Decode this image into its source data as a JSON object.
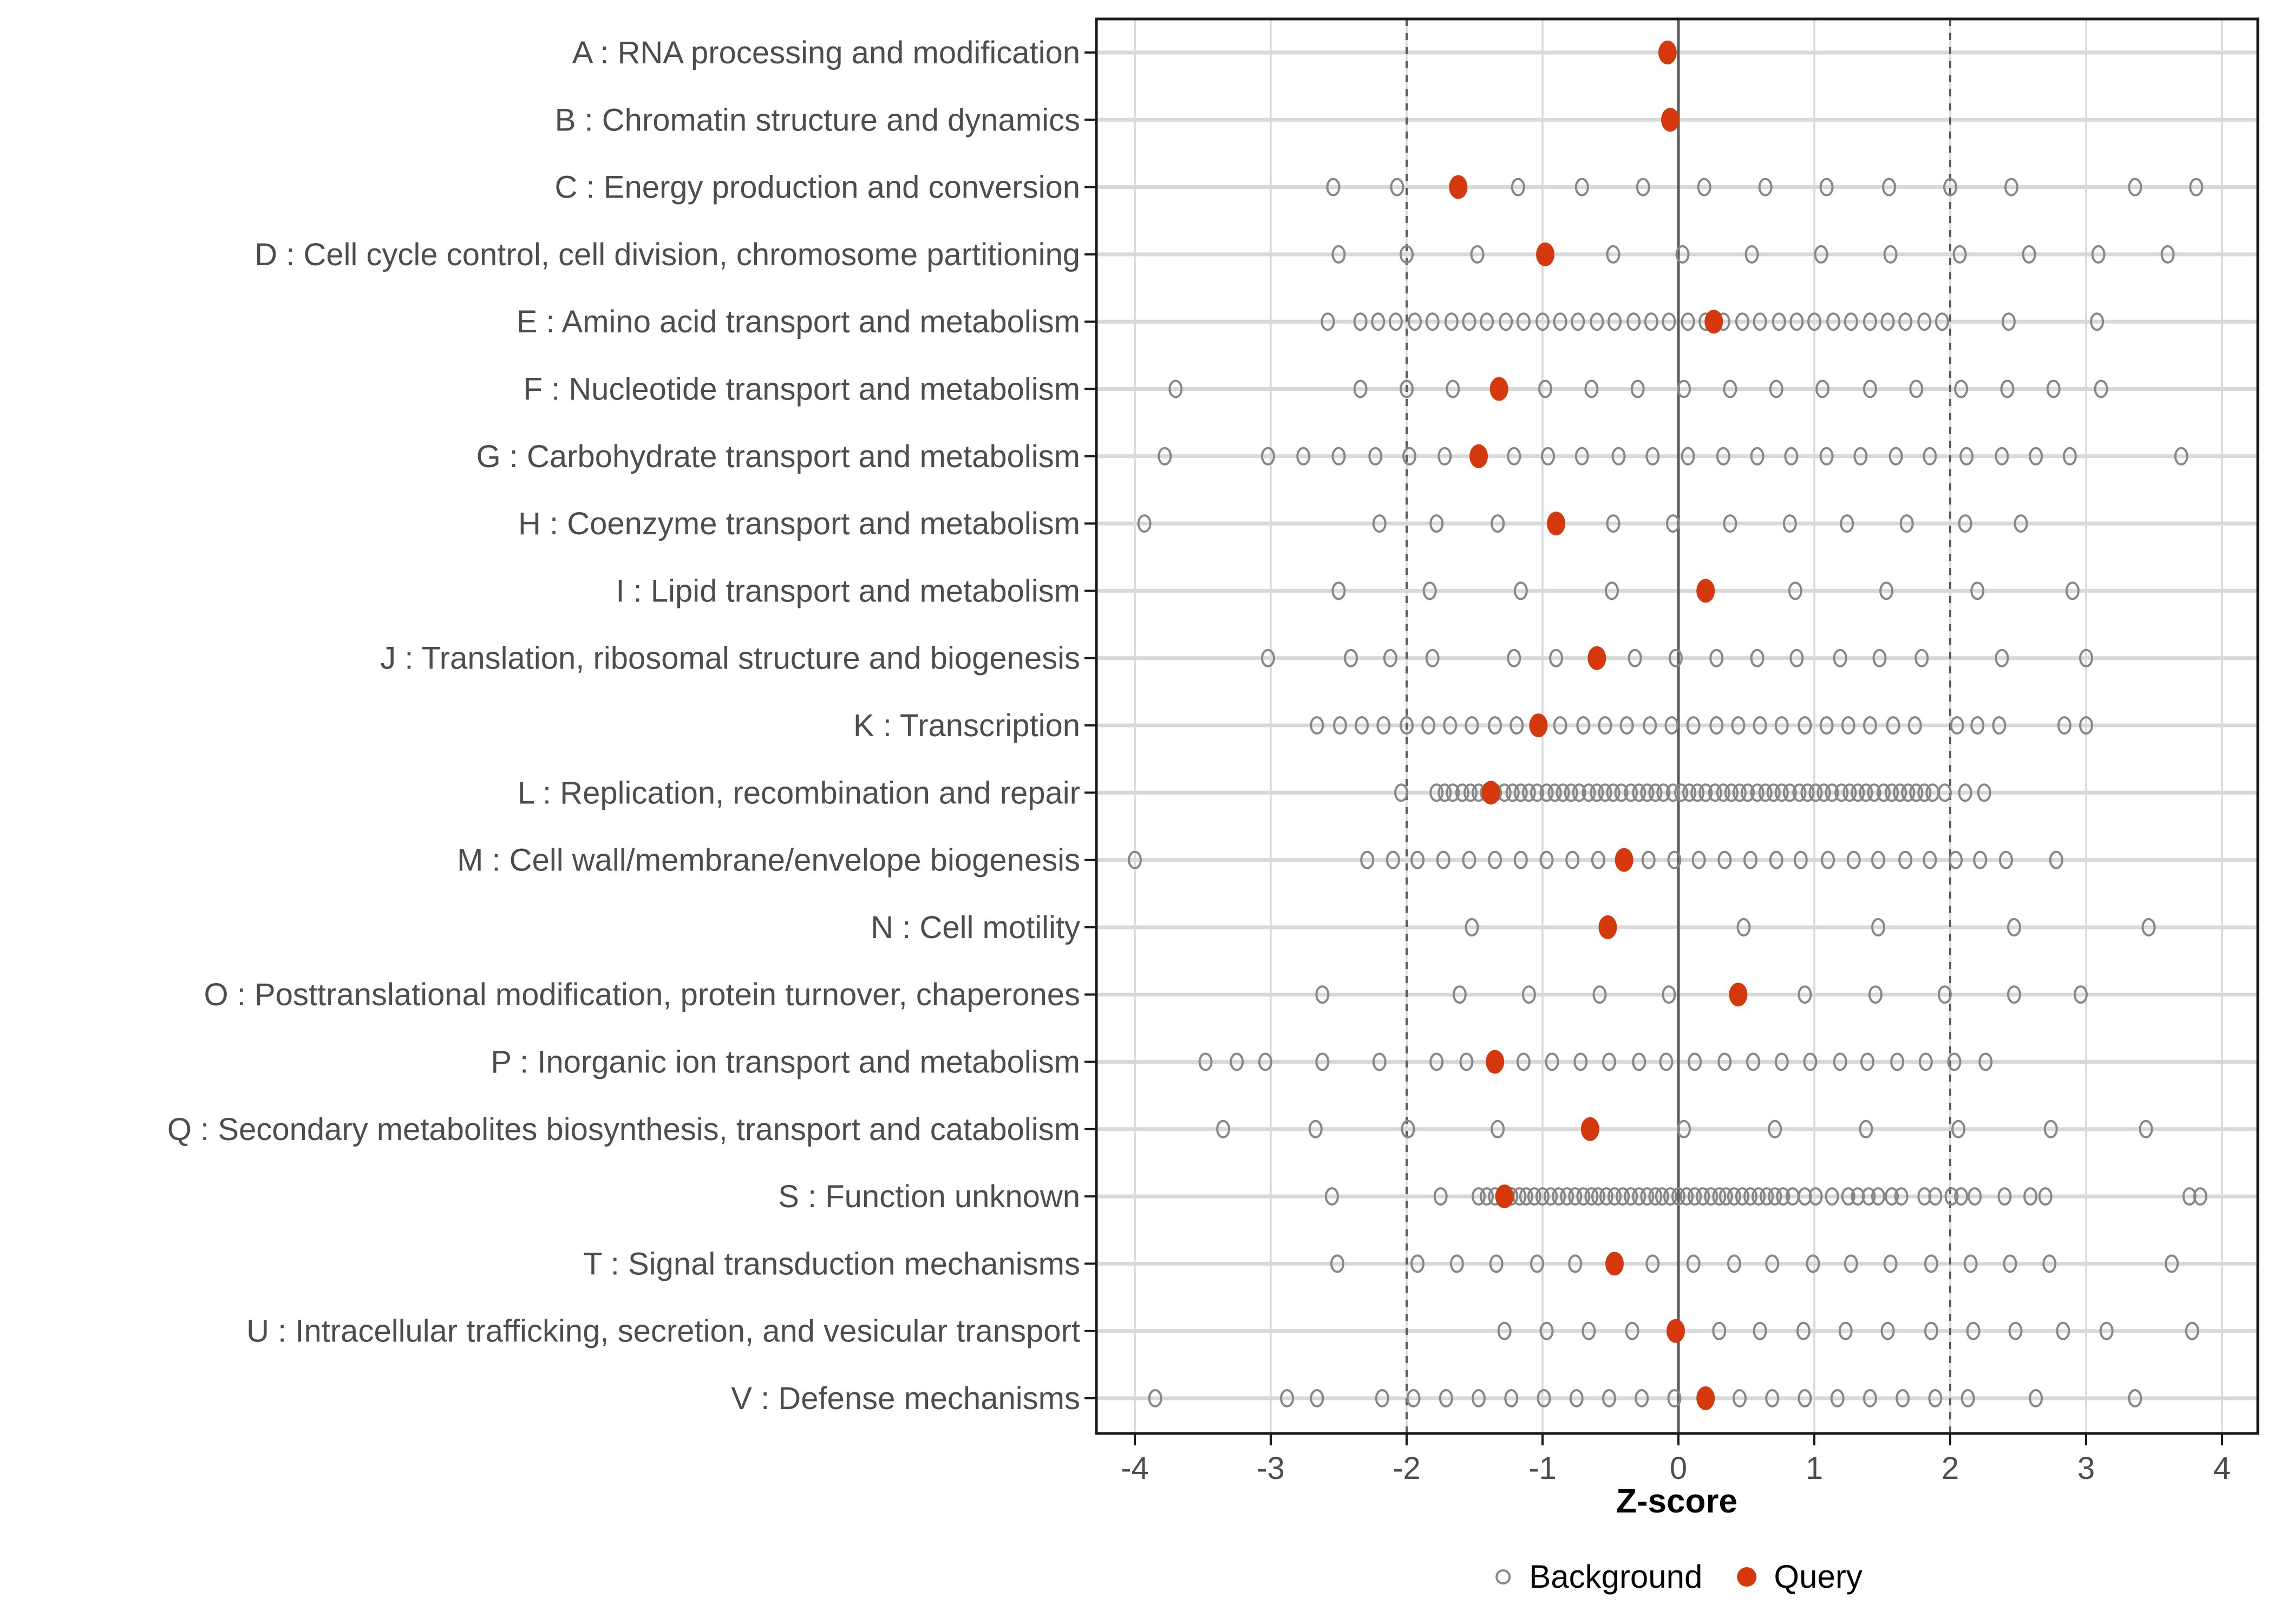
{
  "chart_data": {
    "type": "scatter",
    "title": "",
    "xlabel": "Z-score",
    "x_ticks": [
      -4,
      -3,
      -2,
      -1,
      0,
      1,
      2,
      3,
      4
    ],
    "x_range": [
      -4.28,
      4.28
    ],
    "grid": "on",
    "reference_lines": {
      "solid_at": 0,
      "dashed_at": [
        -2,
        2
      ]
    },
    "legend": {
      "position": "bottom",
      "background_label": "Background",
      "query_label": "Query"
    },
    "colors": {
      "query": "#D6380E",
      "background_stroke": "#878787",
      "grid": "#D8D8D8",
      "reference": "#5A5A5A",
      "axis_text": "#4D4D4D",
      "border": "#1A1A1A"
    },
    "series": [
      {
        "code": "A",
        "label": "A : RNA processing and modification",
        "query": -0.08,
        "background": []
      },
      {
        "code": "B",
        "label": "B : Chromatin structure and dynamics",
        "query": -0.06,
        "background": []
      },
      {
        "code": "C",
        "label": "C : Energy production and conversion",
        "query": -1.62,
        "background": [
          -2.54,
          -2.07,
          -1.18,
          -0.71,
          -0.26,
          0.19,
          0.64,
          1.09,
          1.55,
          2.0,
          2.45,
          3.36,
          3.81
        ]
      },
      {
        "code": "D",
        "label": "D : Cell cycle control, cell division, chromosome partitioning",
        "query": -0.98,
        "background": [
          -2.5,
          -2.0,
          -1.48,
          -0.48,
          0.03,
          0.54,
          1.05,
          1.56,
          2.07,
          2.58,
          3.09,
          3.6
        ]
      },
      {
        "code": "E",
        "label": "E : Amino acid transport and metabolism",
        "query": 0.26,
        "background": [
          -2.58,
          -2.34,
          -2.21,
          -2.08,
          -1.94,
          -1.81,
          -1.67,
          -1.54,
          -1.41,
          -1.27,
          -1.14,
          -1.0,
          -0.87,
          -0.74,
          -0.6,
          -0.47,
          -0.33,
          -0.2,
          -0.07,
          0.07,
          0.2,
          0.33,
          0.47,
          0.6,
          0.74,
          0.87,
          1.0,
          1.14,
          1.27,
          1.41,
          1.54,
          1.67,
          1.81,
          1.94,
          2.43,
          3.08
        ]
      },
      {
        "code": "F",
        "label": "F : Nucleotide transport and metabolism",
        "query": -1.32,
        "background": [
          -3.7,
          -2.34,
          -2.0,
          -1.66,
          -0.98,
          -0.64,
          -0.3,
          0.04,
          0.38,
          0.72,
          1.06,
          1.41,
          1.75,
          2.08,
          2.42,
          2.76,
          3.11
        ]
      },
      {
        "code": "G",
        "label": "G : Carbohydrate transport and metabolism",
        "query": -1.47,
        "background": [
          -3.78,
          -3.02,
          -2.76,
          -2.5,
          -2.23,
          -1.98,
          -1.72,
          -1.21,
          -0.96,
          -0.71,
          -0.44,
          -0.19,
          0.07,
          0.33,
          0.58,
          0.83,
          1.09,
          1.34,
          1.6,
          1.85,
          2.12,
          2.38,
          2.63,
          2.88,
          3.7
        ]
      },
      {
        "code": "H",
        "label": "H : Coenzyme transport and metabolism",
        "query": -0.9,
        "background": [
          -3.93,
          -2.2,
          -1.78,
          -1.33,
          -0.48,
          -0.04,
          0.38,
          0.82,
          1.24,
          1.68,
          2.11,
          2.52
        ]
      },
      {
        "code": "I",
        "label": "I : Lipid transport and metabolism",
        "query": 0.2,
        "background": [
          -2.5,
          -1.83,
          -1.16,
          -0.49,
          0.86,
          1.53,
          2.2,
          2.9
        ]
      },
      {
        "code": "J",
        "label": "J : Translation, ribosomal structure and biogenesis",
        "query": -0.6,
        "background": [
          -3.02,
          -2.41,
          -2.12,
          -1.81,
          -1.21,
          -0.9,
          -0.32,
          -0.02,
          0.28,
          0.58,
          0.87,
          1.19,
          1.48,
          1.79,
          2.38,
          3.0
        ]
      },
      {
        "code": "K",
        "label": "K : Transcription",
        "query": -1.03,
        "background": [
          -2.66,
          -2.49,
          -2.33,
          -2.17,
          -2.0,
          -1.84,
          -1.68,
          -1.52,
          -1.35,
          -1.19,
          -0.87,
          -0.7,
          -0.54,
          -0.38,
          -0.21,
          -0.05,
          0.11,
          0.28,
          0.44,
          0.6,
          0.76,
          0.93,
          1.09,
          1.25,
          1.41,
          1.58,
          1.74,
          2.05,
          2.2,
          2.36,
          2.84,
          3.0
        ]
      },
      {
        "code": "L",
        "label": "L : Replication, recombination and repair",
        "query": -1.38,
        "background": [
          -2.04,
          -1.78,
          -1.72,
          -1.66,
          -1.59,
          -1.53,
          -1.47,
          -1.41,
          -1.35,
          -1.28,
          -1.22,
          -1.16,
          -1.1,
          -1.04,
          -0.97,
          -0.91,
          -0.85,
          -0.79,
          -0.73,
          -0.66,
          -0.6,
          -0.54,
          -0.48,
          -0.42,
          -0.35,
          -0.29,
          -0.23,
          -0.17,
          -0.11,
          -0.04,
          0.02,
          0.08,
          0.14,
          0.2,
          0.27,
          0.33,
          0.39,
          0.45,
          0.51,
          0.58,
          0.64,
          0.7,
          0.76,
          0.82,
          0.89,
          0.95,
          1.01,
          1.07,
          1.13,
          1.2,
          1.26,
          1.32,
          1.38,
          1.44,
          1.51,
          1.57,
          1.63,
          1.69,
          1.75,
          1.81,
          1.87,
          1.96,
          2.11,
          2.25
        ]
      },
      {
        "code": "M",
        "label": "M : Cell wall/membrane/envelope biogenesis",
        "query": -0.4,
        "background": [
          -4.0,
          -2.29,
          -2.1,
          -1.92,
          -1.73,
          -1.54,
          -1.35,
          -1.16,
          -0.97,
          -0.78,
          -0.59,
          -0.22,
          -0.03,
          0.15,
          0.34,
          0.53,
          0.72,
          0.9,
          1.1,
          1.29,
          1.47,
          1.67,
          1.85,
          2.04,
          2.22,
          2.41,
          2.78
        ]
      },
      {
        "code": "N",
        "label": "N : Cell motility",
        "query": -0.52,
        "background": [
          -1.52,
          0.48,
          1.47,
          2.47,
          3.46
        ]
      },
      {
        "code": "O",
        "label": "O : Posttranslational modification, protein turnover, chaperones",
        "query": 0.44,
        "background": [
          -2.62,
          -1.61,
          -1.1,
          -0.58,
          -0.07,
          0.93,
          1.45,
          1.96,
          2.47,
          2.96
        ]
      },
      {
        "code": "P",
        "label": "P : Inorganic ion transport and metabolism",
        "query": -1.35,
        "background": [
          -3.48,
          -3.25,
          -3.04,
          -2.62,
          -2.2,
          -1.78,
          -1.56,
          -1.14,
          -0.93,
          -0.72,
          -0.51,
          -0.29,
          -0.09,
          0.12,
          0.34,
          0.55,
          0.76,
          0.97,
          1.19,
          1.39,
          1.61,
          1.82,
          2.03,
          2.26
        ]
      },
      {
        "code": "Q",
        "label": "Q : Secondary metabolites biosynthesis, transport and catabolism",
        "query": -0.65,
        "background": [
          -3.35,
          -2.67,
          -1.99,
          -1.33,
          0.04,
          0.71,
          1.38,
          2.06,
          2.74,
          3.44
        ]
      },
      {
        "code": "S",
        "label": "S : Function unknown",
        "query": -1.28,
        "background": [
          -2.55,
          -1.75,
          -1.47,
          -1.41,
          -1.35,
          -1.29,
          -1.23,
          -1.17,
          -1.12,
          -1.06,
          -1.0,
          -0.94,
          -0.88,
          -0.82,
          -0.76,
          -0.7,
          -0.64,
          -0.59,
          -0.53,
          -0.47,
          -0.41,
          -0.35,
          -0.29,
          -0.23,
          -0.17,
          -0.12,
          -0.06,
          0.0,
          0.06,
          0.12,
          0.18,
          0.24,
          0.3,
          0.35,
          0.41,
          0.47,
          0.53,
          0.59,
          0.65,
          0.71,
          0.77,
          0.84,
          0.93,
          1.01,
          1.13,
          1.25,
          1.32,
          1.4,
          1.47,
          1.57,
          1.64,
          1.81,
          1.89,
          2.01,
          2.08,
          2.18,
          2.4,
          2.59,
          2.7,
          3.76,
          3.84
        ]
      },
      {
        "code": "T",
        "label": "T : Signal transduction mechanisms",
        "query": -0.47,
        "background": [
          -2.51,
          -1.92,
          -1.63,
          -1.34,
          -1.04,
          -0.76,
          -0.19,
          0.11,
          0.41,
          0.69,
          0.99,
          1.27,
          1.56,
          1.86,
          2.15,
          2.44,
          2.73,
          3.63
        ]
      },
      {
        "code": "U",
        "label": "U : Intracellular trafficking, secretion, and vesicular transport",
        "query": -0.02,
        "background": [
          -1.28,
          -0.97,
          -0.66,
          -0.34,
          0.3,
          0.6,
          0.92,
          1.23,
          1.54,
          1.86,
          2.17,
          2.48,
          2.83,
          3.15,
          3.78
        ]
      },
      {
        "code": "V",
        "label": "V : Defense mechanisms",
        "query": 0.2,
        "background": [
          -3.85,
          -2.88,
          -2.66,
          -2.18,
          -1.95,
          -1.71,
          -1.47,
          -1.23,
          -0.99,
          -0.75,
          -0.51,
          -0.27,
          -0.03,
          0.45,
          0.69,
          0.93,
          1.17,
          1.41,
          1.65,
          1.89,
          2.13,
          2.63,
          3.36
        ]
      }
    ]
  }
}
